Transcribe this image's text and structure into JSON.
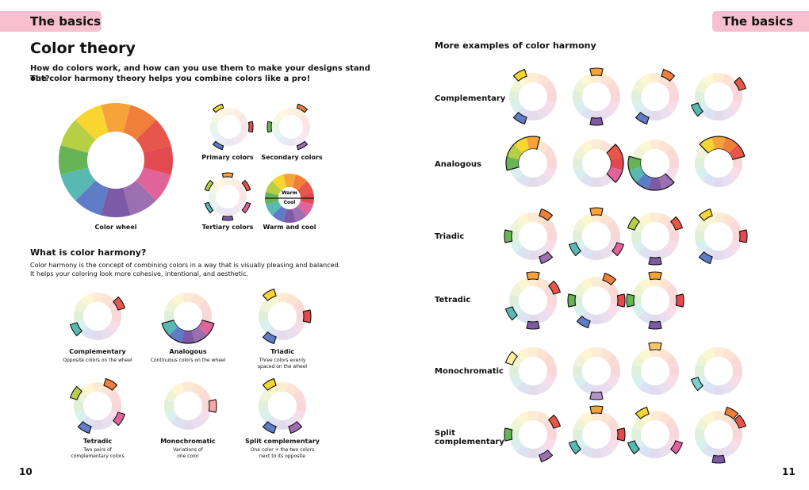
{
  "header": {
    "left_tag": "The basics",
    "right_tag": "The basics"
  },
  "left": {
    "title": "Color theory",
    "intro_1": "How do colors work, and how can you use them to make your designs stand out?",
    "intro_2": "The color harmony theory helps you combine colors like a pro!",
    "wheel_caption": "Color wheel",
    "mini": {
      "primary": "Primary colors",
      "secondary": "Secondary colors",
      "tertiary": "Tertiary colors",
      "warmcool": "Warm and cool",
      "warm": "Warm",
      "cool": "Cool"
    },
    "section_title": "What is color harmony?",
    "section_body_1": "Color harmony is the concept of combining colors in a way that is visually pleasing and balanced.",
    "section_body_2": "It helps your coloring look more cohesive, intentional, and aesthetic.",
    "harmonies": [
      {
        "name": "Complementary",
        "desc_1": "Opposite colors on the wheel",
        "desc_2": ""
      },
      {
        "name": "Analogous",
        "desc_1": "Continuous colors on the wheel",
        "desc_2": ""
      },
      {
        "name": "Triadic",
        "desc_1": "Three colors evenly",
        "desc_2": "spaced on the wheel"
      },
      {
        "name": "Tetradic",
        "desc_1": "Two pairs of",
        "desc_2": "complementary colors"
      },
      {
        "name": "Monochromatic",
        "desc_1": "Variations of",
        "desc_2": "one color"
      },
      {
        "name": "Split complementary",
        "desc_1": "One color + the two colors",
        "desc_2": "next to its opposite"
      }
    ],
    "page_number": "10"
  },
  "right": {
    "title": "More examples of color harmony",
    "rows": [
      {
        "label_1": "Complementary",
        "label_2": ""
      },
      {
        "label_1": "Analogous",
        "label_2": ""
      },
      {
        "label_1": "Triadic",
        "label_2": ""
      },
      {
        "label_1": "Tetradic",
        "label_2": ""
      },
      {
        "label_1": "Monochromatic",
        "label_2": ""
      },
      {
        "label_1": "Split",
        "label_2": "complementary"
      }
    ],
    "page_number": "11"
  },
  "colors": {
    "wheel": [
      "#f6a43a",
      "#f07f3c",
      "#e7564a",
      "#e24a4f",
      "#e06399",
      "#9c6fb0",
      "#7e5aa6",
      "#5f7cc6",
      "#58b9b3",
      "#67b457",
      "#b6cf45",
      "#f8d531"
    ]
  }
}
